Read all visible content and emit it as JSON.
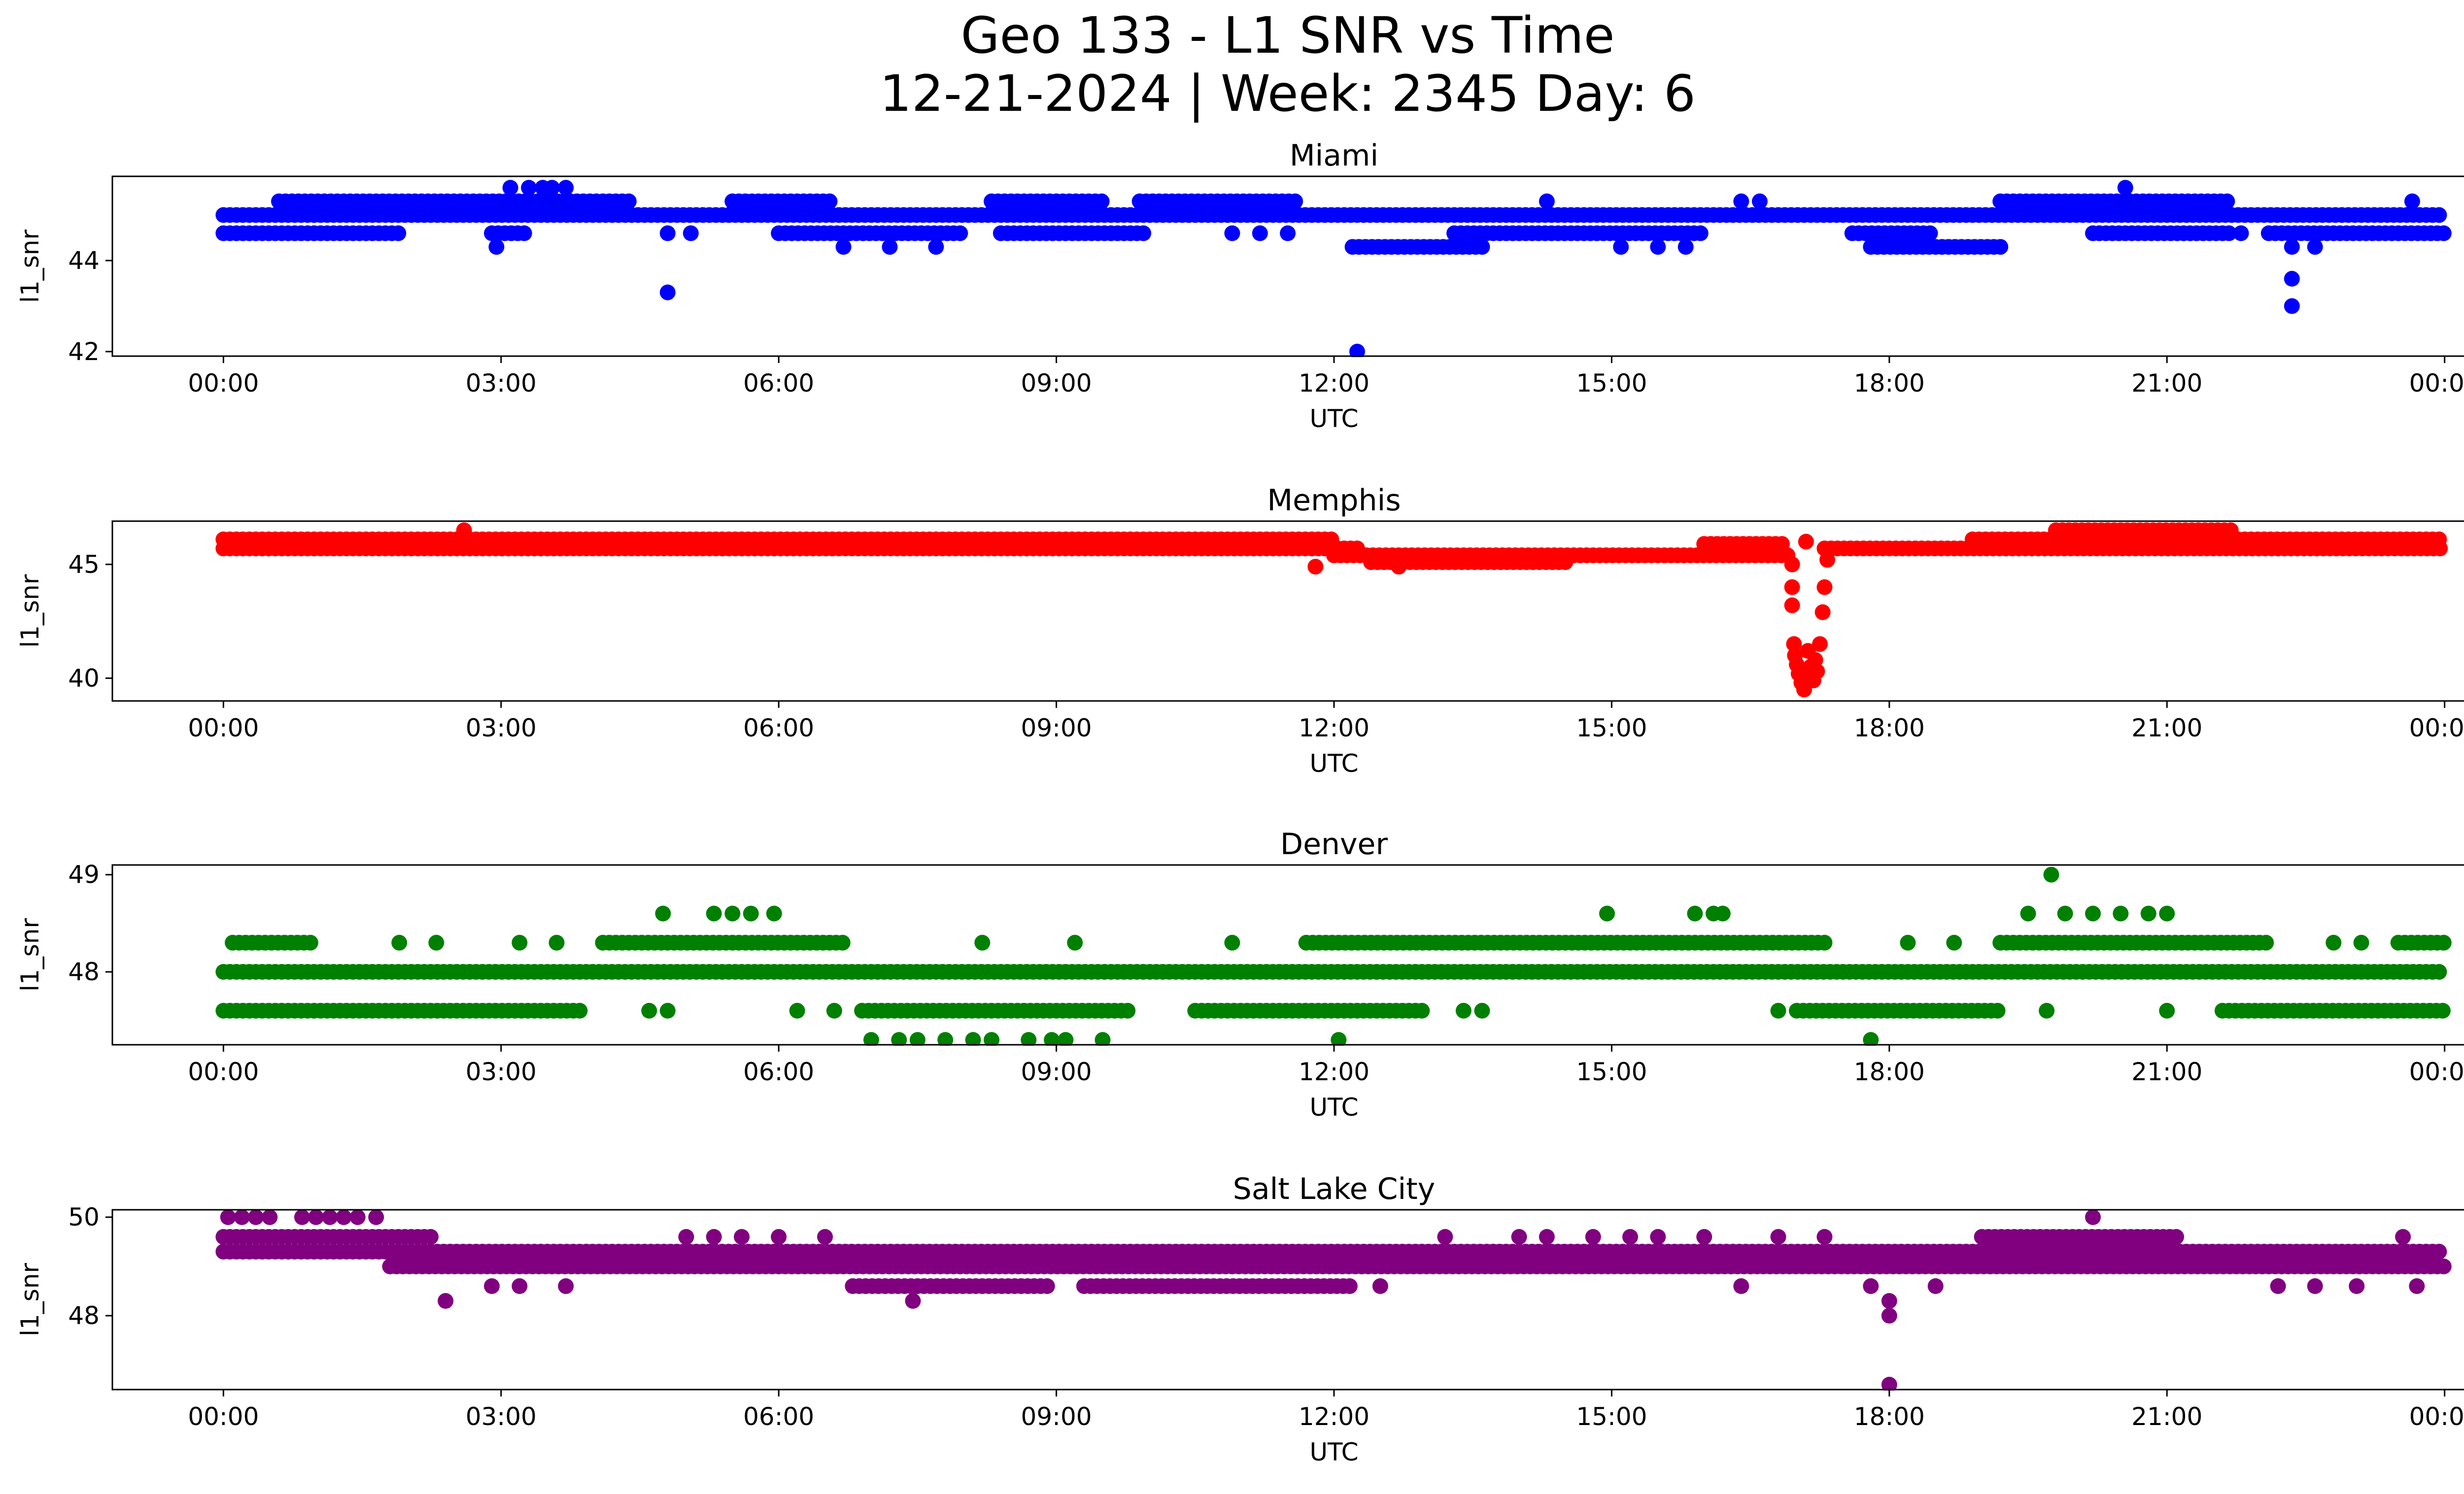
{
  "chart_data": {
    "title_line1": "Geo 133 - L1 SNR vs Time",
    "title_line2": "12-21-2024 | Week: 2345 Day: 6",
    "x_tick_labels": [
      "00:00",
      "03:00",
      "06:00",
      "09:00",
      "12:00",
      "15:00",
      "18:00",
      "21:00",
      "00:00"
    ],
    "x_range_hours": [
      -1.2,
      25.2
    ],
    "panels": [
      {
        "type": "scatter",
        "title": "Miami",
        "color": "#0000ff",
        "xlabel": "UTC",
        "ylabel": "l1_snr",
        "ylim": [
          41.9,
          45.85
        ],
        "yticks": [
          42,
          44
        ],
        "bands": [
          {
            "y": 45.0,
            "segments": [
              [
                0,
                24
              ]
            ]
          },
          {
            "y": 44.6,
            "segments": [
              [
                0,
                1.9
              ],
              [
                2.9,
                3.3
              ],
              [
                6.0,
                8.0
              ],
              [
                8.4,
                10.0
              ],
              [
                13.3,
                16.0
              ],
              [
                17.6,
                18.5
              ],
              [
                20.2,
                21.7
              ],
              [
                22.1,
                24
              ]
            ]
          },
          {
            "y": 45.3,
            "segments": [
              [
                0.6,
                4.4
              ],
              [
                5.5,
                6.6
              ],
              [
                8.3,
                9.5
              ],
              [
                9.9,
                11.6
              ],
              [
                19.2,
                21.7
              ]
            ]
          },
          {
            "y": 44.3,
            "segments": [
              [
                12.2,
                13.6
              ],
              [
                17.8,
                19.2
              ]
            ]
          }
        ],
        "points": [
          {
            "t": 2.95,
            "v": 44.3
          },
          {
            "t": 3.1,
            "v": 45.6
          },
          {
            "t": 3.3,
            "v": 45.6
          },
          {
            "t": 3.45,
            "v": 45.6
          },
          {
            "t": 3.55,
            "v": 45.6
          },
          {
            "t": 3.7,
            "v": 45.6
          },
          {
            "t": 4.8,
            "v": 43.3
          },
          {
            "t": 4.8,
            "v": 44.6
          },
          {
            "t": 5.05,
            "v": 44.6
          },
          {
            "t": 6.7,
            "v": 44.3
          },
          {
            "t": 7.2,
            "v": 44.3
          },
          {
            "t": 7.7,
            "v": 44.3
          },
          {
            "t": 10.9,
            "v": 44.6
          },
          {
            "t": 11.2,
            "v": 44.6
          },
          {
            "t": 11.5,
            "v": 44.6
          },
          {
            "t": 12.25,
            "v": 42.0
          },
          {
            "t": 14.3,
            "v": 45.3
          },
          {
            "t": 15.1,
            "v": 44.3
          },
          {
            "t": 15.5,
            "v": 44.3
          },
          {
            "t": 15.8,
            "v": 44.3
          },
          {
            "t": 16.4,
            "v": 45.3
          },
          {
            "t": 16.6,
            "v": 45.3
          },
          {
            "t": 20.55,
            "v": 45.6
          },
          {
            "t": 21.8,
            "v": 44.6
          },
          {
            "t": 22.35,
            "v": 44.3
          },
          {
            "t": 22.35,
            "v": 43.6
          },
          {
            "t": 22.35,
            "v": 43.0
          },
          {
            "t": 22.6,
            "v": 44.3
          },
          {
            "t": 23.65,
            "v": 45.3
          }
        ]
      },
      {
        "type": "scatter",
        "title": "Memphis",
        "color": "#ff0000",
        "xlabel": "UTC",
        "ylabel": "l1_snr",
        "ylim": [
          39,
          46.9
        ],
        "yticks": [
          40,
          45
        ],
        "bands": [
          {
            "y": 46.1,
            "segments": [
              [
                0,
                12.0
              ],
              [
                18.9,
                24
              ]
            ]
          },
          {
            "y": 45.7,
            "segments": [
              [
                0,
                12.3
              ],
              [
                17.3,
                24
              ]
            ]
          },
          {
            "y": 45.4,
            "segments": [
              [
                12.0,
                16.9
              ]
            ]
          },
          {
            "y": 45.9,
            "segments": [
              [
                16.0,
                16.9
              ]
            ]
          },
          {
            "y": 46.5,
            "segments": [
              [
                19.8,
                21.7
              ]
            ]
          },
          {
            "y": 45.1,
            "segments": [
              [
                12.4,
                14.5
              ]
            ]
          }
        ],
        "points": [
          {
            "t": 16.95,
            "v": 45.0
          },
          {
            "t": 16.95,
            "v": 44.0
          },
          {
            "t": 16.95,
            "v": 43.2
          },
          {
            "t": 16.97,
            "v": 41.5
          },
          {
            "t": 16.98,
            "v": 41.0
          },
          {
            "t": 17.0,
            "v": 40.6
          },
          {
            "t": 17.02,
            "v": 40.2
          },
          {
            "t": 17.05,
            "v": 39.8
          },
          {
            "t": 17.08,
            "v": 39.5
          },
          {
            "t": 17.1,
            "v": 40.1
          },
          {
            "t": 17.12,
            "v": 41.2
          },
          {
            "t": 17.15,
            "v": 40.5
          },
          {
            "t": 17.18,
            "v": 39.9
          },
          {
            "t": 17.2,
            "v": 40.8
          },
          {
            "t": 17.22,
            "v": 40.3
          },
          {
            "t": 17.25,
            "v": 41.5
          },
          {
            "t": 17.28,
            "v": 42.9
          },
          {
            "t": 17.3,
            "v": 44.0
          },
          {
            "t": 17.33,
            "v": 45.2
          },
          {
            "t": 17.1,
            "v": 46.0
          },
          {
            "t": 12.7,
            "v": 44.9
          },
          {
            "t": 11.8,
            "v": 44.9
          },
          {
            "t": 2.6,
            "v": 46.5
          }
        ]
      },
      {
        "type": "scatter",
        "title": "Denver",
        "color": "#008000",
        "xlabel": "UTC",
        "ylabel": "l1_snr",
        "ylim": [
          47.25,
          49.1
        ],
        "yticks": [
          48,
          49
        ],
        "bands": [
          {
            "y": 48.0,
            "segments": [
              [
                0,
                24
              ]
            ]
          },
          {
            "y": 47.6,
            "segments": [
              [
                0,
                3.9
              ],
              [
                6.9,
                9.8
              ],
              [
                10.5,
                13.0
              ],
              [
                17.0,
                19.2
              ],
              [
                21.6,
                24
              ]
            ]
          },
          {
            "y": 48.3,
            "segments": [
              [
                0.1,
                1.0
              ],
              [
                4.1,
                6.7
              ],
              [
                11.7,
                17.3
              ],
              [
                19.2,
                22.1
              ],
              [
                23.5,
                24
              ]
            ]
          }
        ],
        "points": [
          {
            "t": 4.75,
            "v": 48.6
          },
          {
            "t": 5.3,
            "v": 48.6
          },
          {
            "t": 5.5,
            "v": 48.6
          },
          {
            "t": 5.7,
            "v": 48.6
          },
          {
            "t": 5.95,
            "v": 48.6
          },
          {
            "t": 14.95,
            "v": 48.6
          },
          {
            "t": 15.9,
            "v": 48.6
          },
          {
            "t": 16.1,
            "v": 48.6
          },
          {
            "t": 16.2,
            "v": 48.6
          },
          {
            "t": 19.75,
            "v": 49.0
          },
          {
            "t": 19.5,
            "v": 48.6
          },
          {
            "t": 19.9,
            "v": 48.6
          },
          {
            "t": 20.2,
            "v": 48.6
          },
          {
            "t": 20.5,
            "v": 48.6
          },
          {
            "t": 20.8,
            "v": 48.6
          },
          {
            "t": 21.0,
            "v": 48.6
          },
          {
            "t": 7.0,
            "v": 47.3
          },
          {
            "t": 7.3,
            "v": 47.3
          },
          {
            "t": 7.5,
            "v": 47.3
          },
          {
            "t": 7.8,
            "v": 47.3
          },
          {
            "t": 8.1,
            "v": 47.3
          },
          {
            "t": 8.3,
            "v": 47.3
          },
          {
            "t": 8.7,
            "v": 47.3
          },
          {
            "t": 8.95,
            "v": 47.3
          },
          {
            "t": 9.1,
            "v": 47.3
          },
          {
            "t": 9.5,
            "v": 47.3
          },
          {
            "t": 12.05,
            "v": 47.3
          },
          {
            "t": 17.8,
            "v": 47.3
          },
          {
            "t": 4.6,
            "v": 47.6
          },
          {
            "t": 4.8,
            "v": 47.6
          },
          {
            "t": 6.2,
            "v": 47.6
          },
          {
            "t": 6.6,
            "v": 47.6
          },
          {
            "t": 13.4,
            "v": 47.6
          },
          {
            "t": 13.6,
            "v": 47.6
          },
          {
            "t": 16.8,
            "v": 47.6
          },
          {
            "t": 19.7,
            "v": 47.6
          },
          {
            "t": 21.0,
            "v": 47.6
          },
          {
            "t": 1.9,
            "v": 48.3
          },
          {
            "t": 2.3,
            "v": 48.3
          },
          {
            "t": 3.2,
            "v": 48.3
          },
          {
            "t": 3.6,
            "v": 48.3
          },
          {
            "t": 8.2,
            "v": 48.3
          },
          {
            "t": 9.2,
            "v": 48.3
          },
          {
            "t": 10.9,
            "v": 48.3
          },
          {
            "t": 18.2,
            "v": 48.3
          },
          {
            "t": 18.7,
            "v": 48.3
          },
          {
            "t": 22.8,
            "v": 48.3
          },
          {
            "t": 23.1,
            "v": 48.3
          }
        ]
      },
      {
        "type": "scatter",
        "title": "Salt Lake City",
        "color": "#800080",
        "xlabel": "UTC",
        "ylabel": "l1_snr",
        "ylim": [
          46.5,
          50.15
        ],
        "yticks": [
          48,
          50
        ],
        "bands": [
          {
            "y": 49.3,
            "segments": [
              [
                0,
                24
              ]
            ]
          },
          {
            "y": 49.0,
            "segments": [
              [
                1.8,
                24
              ]
            ]
          },
          {
            "y": 49.6,
            "segments": [
              [
                0,
                2.3
              ],
              [
                19.0,
                21.1
              ]
            ]
          },
          {
            "y": 48.6,
            "segments": [
              [
                6.8,
                8.9
              ],
              [
                9.3,
                12.2
              ]
            ]
          }
        ],
        "points": [
          {
            "t": 0.05,
            "v": 50.0
          },
          {
            "t": 0.2,
            "v": 50.0
          },
          {
            "t": 0.35,
            "v": 50.0
          },
          {
            "t": 0.5,
            "v": 50.0
          },
          {
            "t": 0.85,
            "v": 50.0
          },
          {
            "t": 1.0,
            "v": 50.0
          },
          {
            "t": 1.15,
            "v": 50.0
          },
          {
            "t": 1.3,
            "v": 50.0
          },
          {
            "t": 1.45,
            "v": 50.0
          },
          {
            "t": 1.65,
            "v": 50.0
          },
          {
            "t": 2.4,
            "v": 48.3
          },
          {
            "t": 2.9,
            "v": 48.6
          },
          {
            "t": 3.2,
            "v": 48.6
          },
          {
            "t": 3.7,
            "v": 48.6
          },
          {
            "t": 5.0,
            "v": 49.6
          },
          {
            "t": 5.3,
            "v": 49.6
          },
          {
            "t": 5.6,
            "v": 49.6
          },
          {
            "t": 6.0,
            "v": 49.6
          },
          {
            "t": 6.5,
            "v": 49.6
          },
          {
            "t": 7.45,
            "v": 48.3
          },
          {
            "t": 12.5,
            "v": 48.6
          },
          {
            "t": 13.2,
            "v": 49.6
          },
          {
            "t": 14.0,
            "v": 49.6
          },
          {
            "t": 14.3,
            "v": 49.6
          },
          {
            "t": 14.8,
            "v": 49.6
          },
          {
            "t": 15.2,
            "v": 49.6
          },
          {
            "t": 15.5,
            "v": 49.6
          },
          {
            "t": 16.0,
            "v": 49.6
          },
          {
            "t": 16.4,
            "v": 48.6
          },
          {
            "t": 16.8,
            "v": 49.6
          },
          {
            "t": 17.3,
            "v": 49.6
          },
          {
            "t": 17.8,
            "v": 48.6
          },
          {
            "t": 18.0,
            "v": 48.3
          },
          {
            "t": 18.0,
            "v": 48.0
          },
          {
            "t": 18.0,
            "v": 46.6
          },
          {
            "t": 18.5,
            "v": 48.6
          },
          {
            "t": 20.2,
            "v": 50.0
          },
          {
            "t": 22.2,
            "v": 48.6
          },
          {
            "t": 22.6,
            "v": 48.6
          },
          {
            "t": 23.05,
            "v": 48.6
          },
          {
            "t": 23.55,
            "v": 49.6
          },
          {
            "t": 23.7,
            "v": 48.6
          }
        ]
      }
    ]
  }
}
